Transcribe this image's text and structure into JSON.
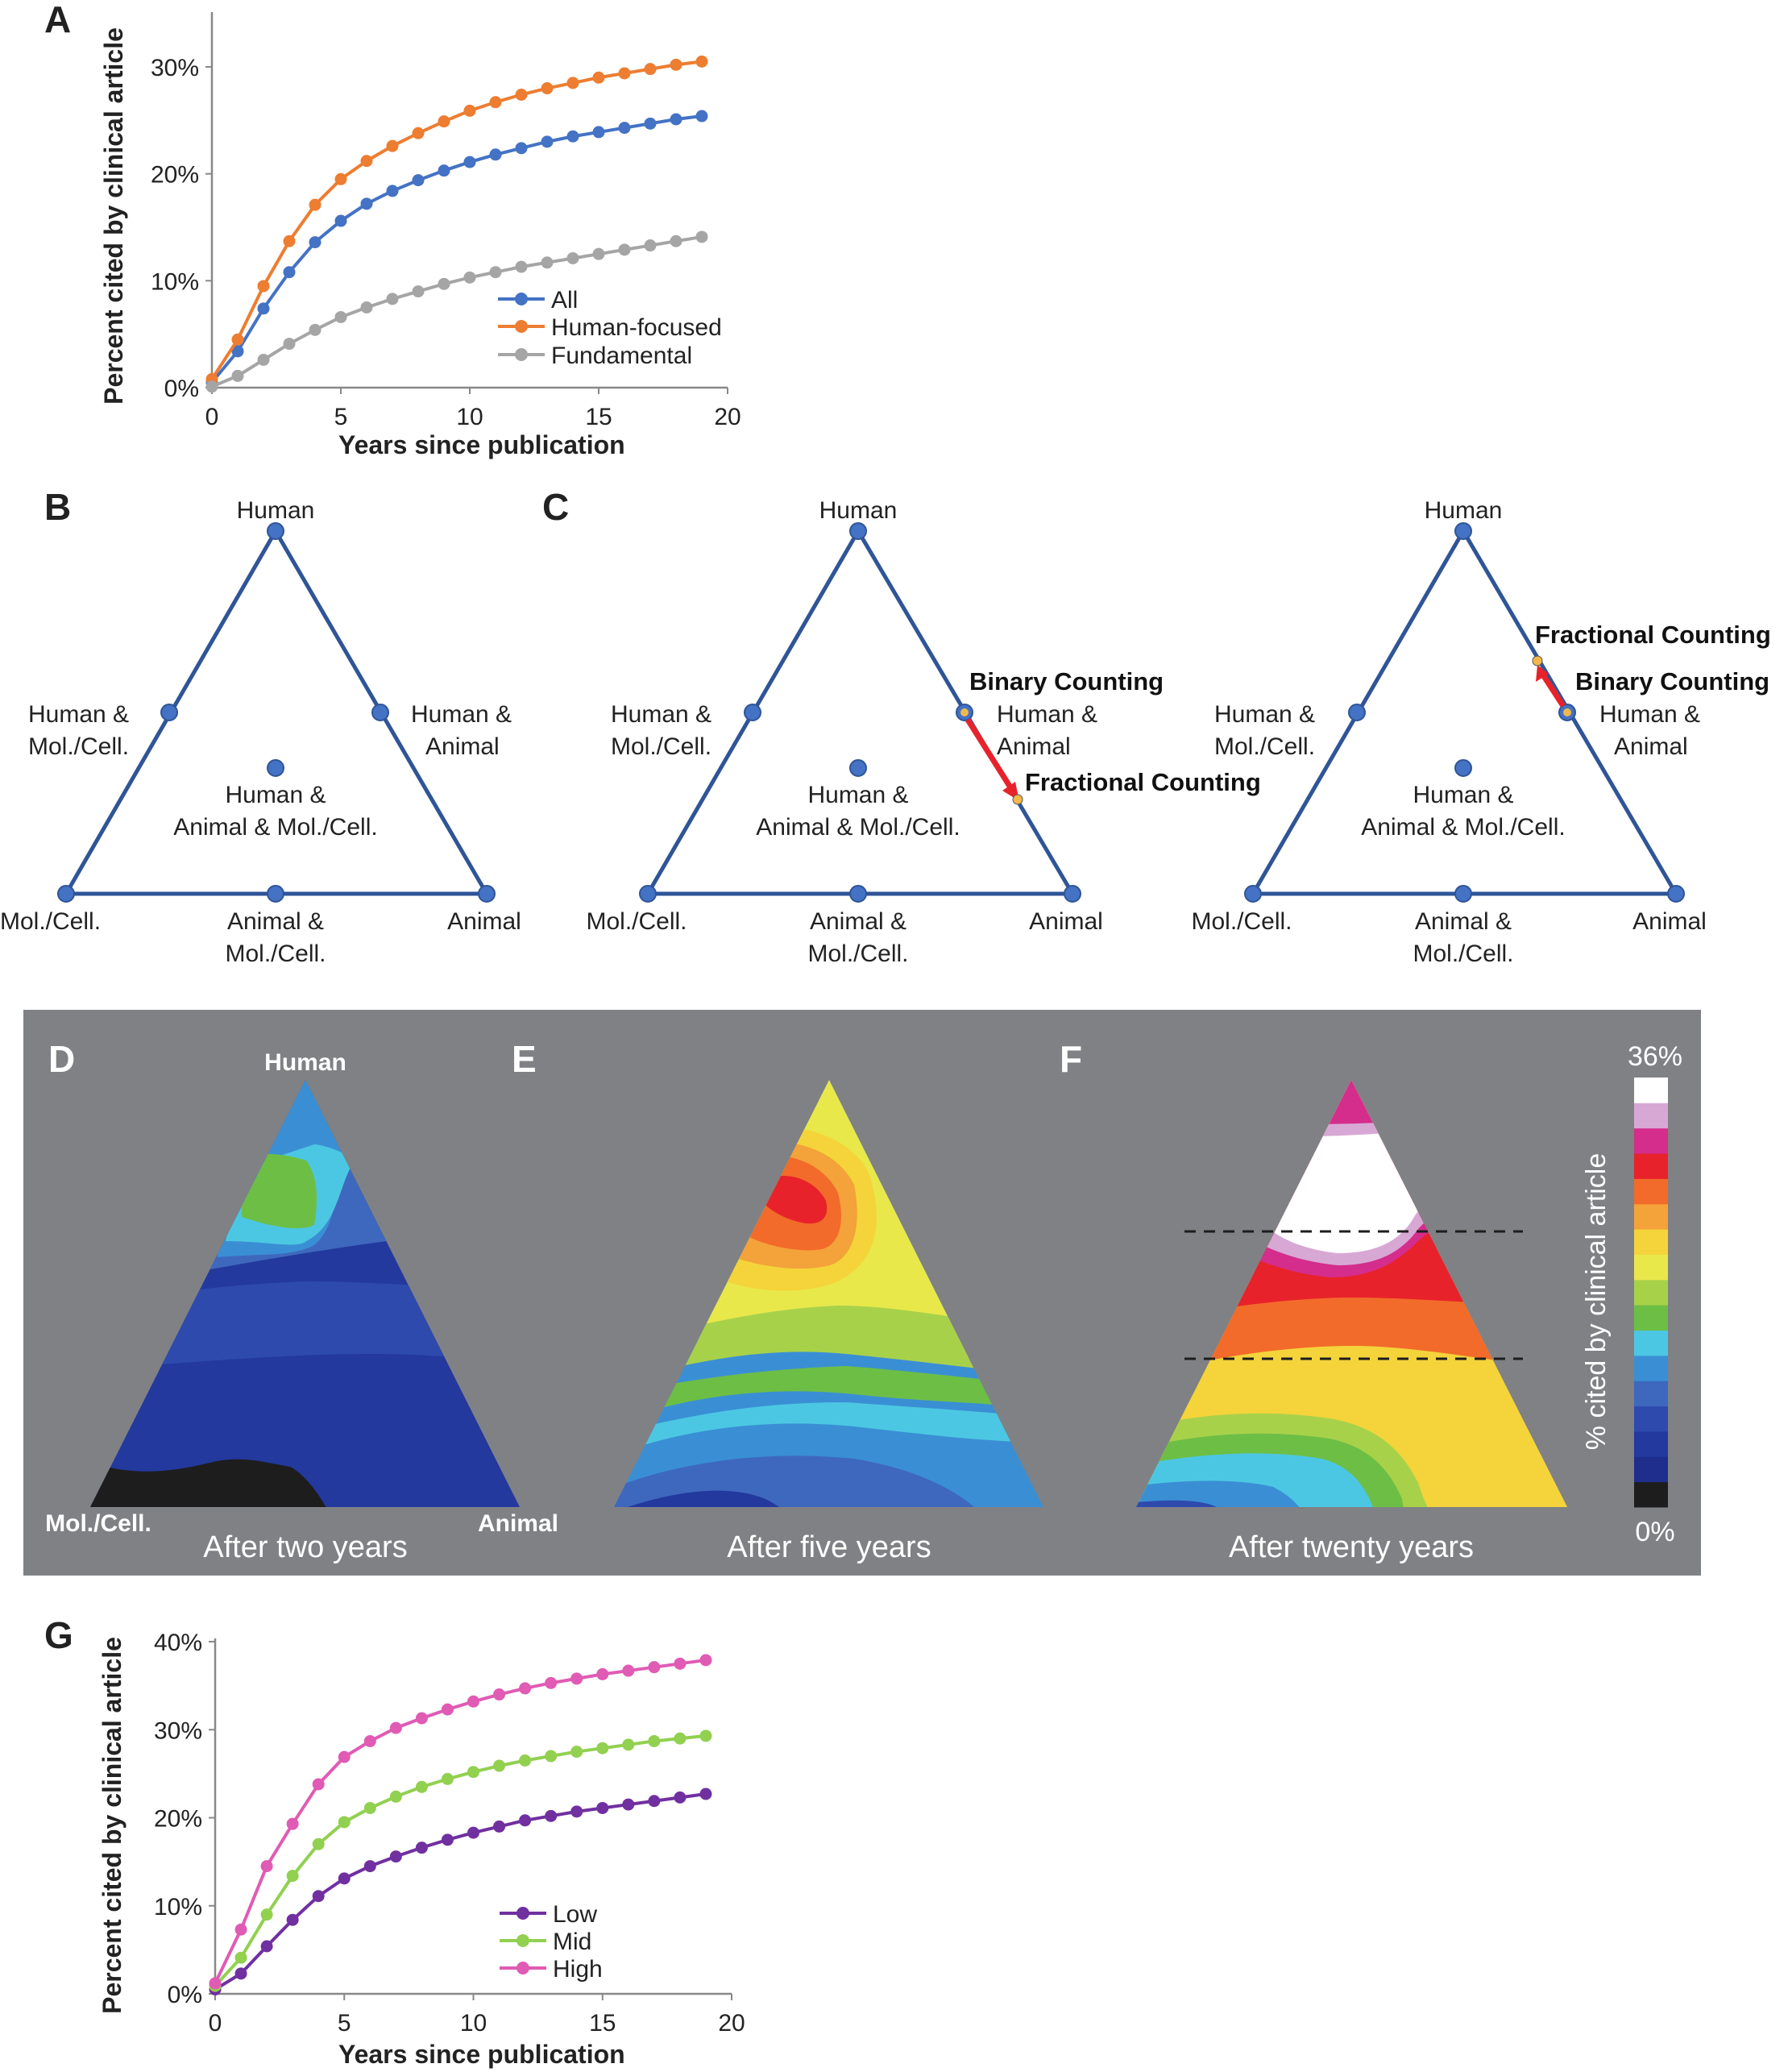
{
  "chart_data": [
    {
      "panel": "A",
      "type": "line",
      "xlabel": "Years since publication",
      "ylabel": "Percent cited by clinical article",
      "xlim": [
        0,
        20
      ],
      "ylim": [
        0,
        30
      ],
      "xticks": [
        "0",
        "5",
        "10",
        "15",
        "20"
      ],
      "yticks": [
        "0%",
        "10%",
        "20%",
        "30%"
      ],
      "x": [
        0,
        1,
        2,
        3,
        4,
        5,
        6,
        7,
        8,
        9,
        10,
        11,
        12,
        13,
        14,
        15,
        16,
        17,
        18,
        19
      ],
      "series": [
        {
          "name": "All",
          "color": "#4472C4",
          "values": [
            0.5,
            3.4,
            7.4,
            10.8,
            13.6,
            15.6,
            17.2,
            18.4,
            19.4,
            20.3,
            21.1,
            21.8,
            22.4,
            23.0,
            23.5,
            23.9,
            24.3,
            24.7,
            25.1,
            25.4
          ]
        },
        {
          "name": "Human-focused",
          "color": "#ED7D31",
          "values": [
            0.8,
            4.5,
            9.5,
            13.7,
            17.1,
            19.5,
            21.2,
            22.6,
            23.8,
            24.9,
            25.9,
            26.7,
            27.4,
            28.0,
            28.5,
            29.0,
            29.4,
            29.8,
            30.2,
            30.5
          ]
        },
        {
          "name": "Fundamental",
          "color": "#A5A5A5",
          "values": [
            0.1,
            1.1,
            2.6,
            4.1,
            5.4,
            6.6,
            7.5,
            8.3,
            9.0,
            9.7,
            10.3,
            10.8,
            11.3,
            11.7,
            12.1,
            12.5,
            12.9,
            13.3,
            13.7,
            14.1
          ]
        }
      ]
    },
    {
      "panel": "G",
      "type": "line",
      "xlabel": "Years since publication",
      "ylabel": "Percent cited by clinical article",
      "xlim": [
        0,
        20
      ],
      "ylim": [
        0,
        40
      ],
      "xticks": [
        "0",
        "5",
        "10",
        "15",
        "20"
      ],
      "yticks": [
        "0%",
        "10%",
        "20%",
        "30%",
        "40%"
      ],
      "x": [
        0,
        1,
        2,
        3,
        4,
        5,
        6,
        7,
        8,
        9,
        10,
        11,
        12,
        13,
        14,
        15,
        16,
        17,
        18,
        19
      ],
      "series": [
        {
          "name": "Low",
          "color": "#7030A0",
          "values": [
            0.5,
            2.3,
            5.4,
            8.4,
            11.1,
            13.1,
            14.5,
            15.6,
            16.6,
            17.5,
            18.3,
            19.0,
            19.7,
            20.2,
            20.7,
            21.1,
            21.5,
            21.9,
            22.3,
            22.7
          ]
        },
        {
          "name": "Mid",
          "color": "#92D050",
          "values": [
            0.9,
            4.1,
            9.0,
            13.4,
            17.0,
            19.5,
            21.1,
            22.4,
            23.5,
            24.4,
            25.2,
            25.9,
            26.5,
            27.0,
            27.5,
            27.9,
            28.3,
            28.7,
            29.0,
            29.3
          ]
        },
        {
          "name": "High",
          "color": "#E05BB4",
          "values": [
            1.2,
            7.3,
            14.5,
            19.3,
            23.8,
            26.9,
            28.7,
            30.2,
            31.3,
            32.3,
            33.2,
            34.0,
            34.7,
            35.3,
            35.8,
            36.3,
            36.7,
            37.1,
            37.5,
            37.9
          ]
        }
      ]
    }
  ],
  "panels": {
    "A": "A",
    "B": "B",
    "C": "C",
    "D": "D",
    "E": "E",
    "F": "F",
    "G": "G"
  },
  "triangle": {
    "human": "Human",
    "animal": "Animal",
    "molcell": "Mol./Cell.",
    "human_and": "Human &",
    "molcell_short": "Mol./Cell.",
    "animal_short": "Animal",
    "animal_and": "Animal &",
    "center_line2": "Animal & Mol./Cell.",
    "binary_counting": "Binary Counting",
    "fractional_counting": "Fractional Counting"
  },
  "heatmaps": {
    "human": "Human",
    "molcell": "Mol./Cell.",
    "animal": "Animal",
    "caption_d": "After two years",
    "caption_e": "After five years",
    "caption_f": "After twenty years",
    "colorbar_top": "36%",
    "colorbar_bottom": "0%",
    "colorbar_label": "% cited by clinical article",
    "colors": [
      "#1d1d1d",
      "#1f2d8c",
      "#23399d",
      "#2e4aad",
      "#3e68bd",
      "#3a8fd4",
      "#4cc7e3",
      "#6dbe45",
      "#a8d14a",
      "#e8e84b",
      "#f4d43a",
      "#f4a23a",
      "#f26b2a",
      "#e8222a",
      "#d42d8c",
      "#d8a8d4",
      "#ffffff"
    ]
  }
}
